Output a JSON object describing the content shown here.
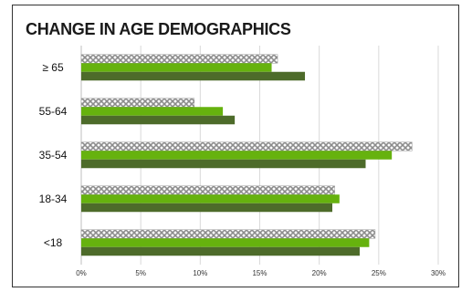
{
  "chart_data": {
    "type": "bar",
    "orientation": "horizontal",
    "title": "CHANGE IN AGE DEMOGRAPHICS",
    "xlabel": "",
    "ylabel": "",
    "categories": [
      "≥ 65",
      "55-64",
      "35-54",
      "18-34",
      "<18"
    ],
    "xlim": [
      0,
      30
    ],
    "x_ticks": [
      "0%",
      "5%",
      "10%",
      "15%",
      "20%",
      "25%",
      "30%"
    ],
    "x_tick_values": [
      0,
      5,
      10,
      15,
      20,
      25,
      30
    ],
    "grid": true,
    "legend": "none",
    "series": [
      {
        "values": [
          16.5,
          9.5,
          27.8,
          21.3,
          24.7
        ],
        "color": "#a6a6a6",
        "pattern": "crosshatch"
      },
      {
        "values": [
          16.0,
          11.9,
          26.1,
          21.7,
          24.2
        ],
        "color": "#66b20e",
        "pattern": "solid"
      },
      {
        "values": [
          18.8,
          12.9,
          23.9,
          21.1,
          23.4
        ],
        "color": "#4d6b2a",
        "pattern": "solid"
      }
    ]
  }
}
